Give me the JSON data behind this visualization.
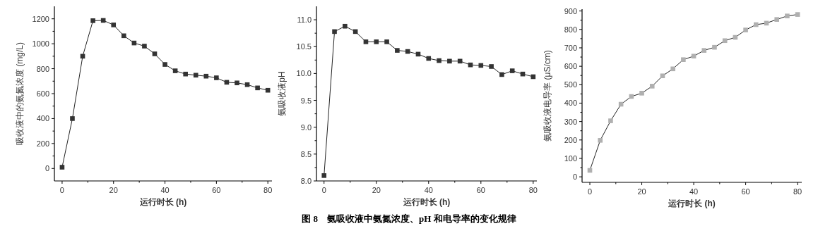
{
  "chart_data": [
    {
      "type": "line",
      "xlabel": "运行时长 (h)",
      "ylabel": "吸收液中的氨氮浓度 (mg/L)",
      "marker": "square",
      "xlim": [
        -3,
        81.6
      ],
      "ylim": [
        -100,
        1300
      ],
      "xticks": [
        0,
        20,
        40,
        60,
        80
      ],
      "yticks": [
        0,
        200,
        400,
        600,
        800,
        1000,
        1200
      ],
      "x": [
        0,
        4,
        8,
        12,
        16,
        20,
        24,
        28,
        32,
        36,
        40,
        44,
        48,
        52,
        56,
        60,
        64,
        68,
        72,
        76,
        80
      ],
      "series": [
        {
          "color": "#333333",
          "values": [
            10,
            400,
            900,
            1185,
            1187,
            1151,
            1064,
            1006,
            981,
            919,
            834,
            783,
            757,
            748,
            740,
            727,
            691,
            686,
            672,
            646,
            627
          ]
        }
      ]
    },
    {
      "type": "line",
      "xlabel": "运行时长 (h)",
      "ylabel": "氨吸收液pH",
      "marker": "square",
      "xlim": [
        -2.9,
        81.4
      ],
      "ylim": [
        8.0,
        11.25
      ],
      "xticks": [
        0,
        20,
        40,
        60,
        80
      ],
      "yticks": [
        {
          "value": 8,
          "label": "8.0"
        },
        {
          "value": 8.5,
          "label": "8.5"
        },
        {
          "value": 9,
          "label": "9.0"
        },
        {
          "value": 9.5,
          "label": "9.5"
        },
        {
          "value": 10,
          "label": "10.0"
        },
        {
          "value": 10.5,
          "label": "10.5"
        },
        {
          "value": 11,
          "label": "11.0"
        }
      ],
      "annotations": [
        "**图 8　氨吸收液中氨氮浓度、pH 和电导率的变化规律**"
      ],
      "x": [
        0,
        4,
        8,
        12,
        16,
        20,
        24,
        28,
        32,
        36,
        40,
        44,
        48,
        52,
        56,
        60,
        64,
        68,
        72,
        76,
        80
      ],
      "series": [
        {
          "color": "#333333",
          "values": [
            8.1,
            10.78,
            10.88,
            10.78,
            10.59,
            10.59,
            10.59,
            10.43,
            10.41,
            10.36,
            10.28,
            10.24,
            10.23,
            10.23,
            10.16,
            10.15,
            10.13,
            9.98,
            10.05,
            9.99,
            9.94
          ]
        }
      ]
    },
    {
      "type": "line",
      "xlabel": "运行时长 (h)",
      "ylabel": "氨吸收液电导率 (μS/cm)",
      "marker": "square",
      "xlim": [
        -3,
        81.6
      ],
      "ylim": [
        -30,
        910
      ],
      "xticks": [
        0,
        20,
        40,
        60,
        80
      ],
      "yticks": [
        0,
        100,
        200,
        300,
        400,
        500,
        600,
        700,
        800,
        900
      ],
      "x": [
        0,
        4,
        8,
        12,
        16,
        20,
        24,
        28,
        32,
        36,
        40,
        44,
        48,
        52,
        56,
        60,
        64,
        68,
        72,
        76,
        80
      ],
      "series": [
        {
          "color": "#b0b0b0",
          "values": [
            35,
            198,
            304,
            394,
            436,
            454,
            492,
            548,
            586,
            636,
            655,
            686,
            703,
            739,
            757,
            797,
            826,
            834,
            854,
            873,
            881
          ]
        }
      ]
    }
  ]
}
